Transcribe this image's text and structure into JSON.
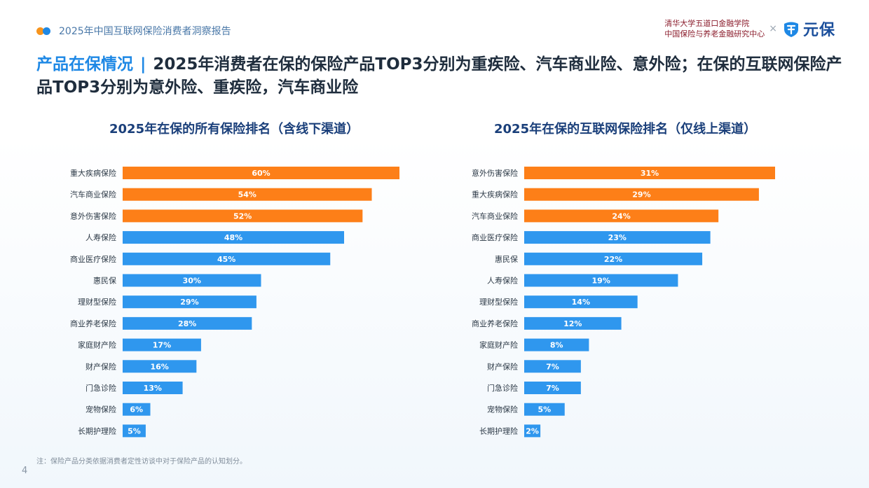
{
  "header": {
    "report_title": "2025年中国互联网保险消费者洞察报告",
    "partner_line1": "清华大学五道口金融学院",
    "partner_line2": "中国保险与养老金融研究中心",
    "cross": "×",
    "brand_name": "元保"
  },
  "headline": {
    "key": "产品在保情况",
    "separator": "|",
    "text": "2025年消费者在保的保险产品TOP3分别为重疾险、汽车商业险、意外险；在保的互联网保险产品TOP3分别为意外险、重疾险，汽车商业险"
  },
  "colors": {
    "highlight": "#fd7f18",
    "normal": "#2f97ee",
    "accent": "#1e88e5"
  },
  "chart_data": [
    {
      "type": "bar",
      "orientation": "horizontal",
      "title": "2025年在保的所有保险排名（含线下渠道）",
      "categories": [
        "重大疾病保险",
        "汽车商业保险",
        "意外伤害保险",
        "人寿保险",
        "商业医疗保险",
        "惠民保",
        "理财型保险",
        "商业养老保险",
        "家庭财产险",
        "财产保险",
        "门急诊险",
        "宠物保险",
        "长期护理险"
      ],
      "values": [
        60,
        54,
        52,
        48,
        45,
        30,
        29,
        28,
        17,
        16,
        13,
        6,
        5
      ],
      "labels": [
        "60%",
        "54%",
        "52%",
        "48%",
        "45%",
        "30%",
        "29%",
        "28%",
        "17%",
        "16%",
        "13%",
        "6%",
        "5%"
      ],
      "highlight_top": 3,
      "xlim": [
        0,
        60
      ]
    },
    {
      "type": "bar",
      "orientation": "horizontal",
      "title": "2025年在保的互联网保险排名（仅线上渠道）",
      "categories": [
        "意外伤害保险",
        "重大疾病保险",
        "汽车商业保险",
        "商业医疗保险",
        "惠民保",
        "人寿保险",
        "理财型保险",
        "商业养老保险",
        "家庭财产险",
        "财产保险",
        "门急诊险",
        "宠物保险",
        "长期护理险"
      ],
      "values": [
        31,
        29,
        24,
        23,
        22,
        19,
        14,
        12,
        8,
        7,
        7,
        5,
        2
      ],
      "labels": [
        "31%",
        "29%",
        "24%",
        "23%",
        "22%",
        "19%",
        "14%",
        "12%",
        "8%",
        "7%",
        "7%",
        "5%",
        "2%"
      ],
      "highlight_top": 3,
      "xlim": [
        0,
        31
      ]
    }
  ],
  "footer": {
    "note": "注：保险产品分类依据消费者定性访谈中对于保险产品的认知划分。",
    "page_number": "4"
  }
}
